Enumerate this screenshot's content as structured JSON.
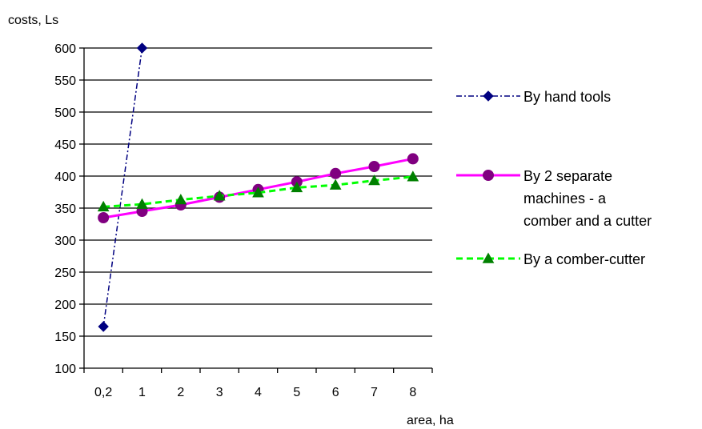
{
  "chart_data": {
    "type": "line",
    "xlabel": "area, ha",
    "ylabel": "costs, Ls",
    "categories": [
      "0,2",
      "1",
      "2",
      "3",
      "4",
      "5",
      "6",
      "7",
      "8"
    ],
    "ylim": [
      100,
      600
    ],
    "yticks": [
      100,
      150,
      200,
      250,
      300,
      350,
      400,
      450,
      500,
      550,
      600
    ],
    "grid": true,
    "legend_position": "right",
    "series": [
      {
        "name": "By hand tools",
        "color": "#000080",
        "line_style": "dash-dot",
        "marker": "diamond",
        "values": [
          165,
          600,
          null,
          null,
          null,
          null,
          null,
          null,
          null
        ]
      },
      {
        "name_lines": [
          "By 2 separate",
          "machines - a",
          "comber and a cutter"
        ],
        "color": "#ff00ff",
        "marker_color": "#800080",
        "line_style": "solid",
        "marker": "circle",
        "values": [
          335,
          345,
          355,
          367,
          379,
          391,
          404,
          415,
          427
        ]
      },
      {
        "name": "By a comber-cutter",
        "color": "#00ff00",
        "marker_color": "#008000",
        "line_style": "dashed",
        "marker": "triangle",
        "values": [
          352,
          356,
          363,
          369,
          374,
          382,
          386,
          393,
          399
        ]
      }
    ]
  }
}
